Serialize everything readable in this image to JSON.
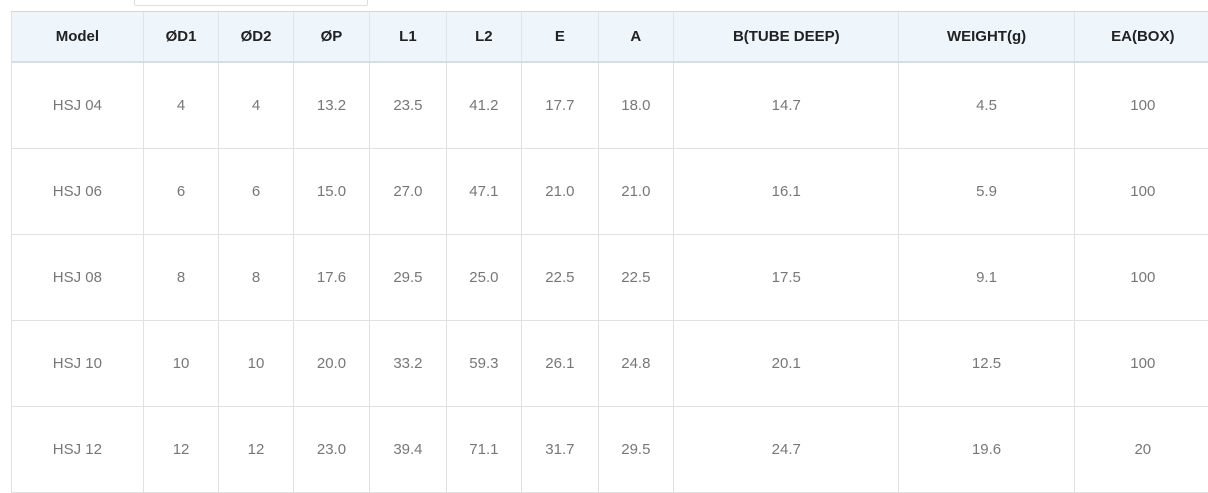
{
  "table": {
    "header": [
      "Model",
      "ØD1",
      "ØD2",
      "ØP",
      "L1",
      "L2",
      "E",
      "A",
      "B(TUBE DEEP)",
      "WEIGHT(g)",
      "EA(BOX)"
    ],
    "rows": [
      [
        "HSJ 04",
        "4",
        "4",
        "13.2",
        "23.5",
        "41.2",
        "17.7",
        "18.0",
        "14.7",
        "4.5",
        "100"
      ],
      [
        "HSJ 06",
        "6",
        "6",
        "15.0",
        "27.0",
        "47.1",
        "21.0",
        "21.0",
        "16.1",
        "5.9",
        "100"
      ],
      [
        "HSJ 08",
        "8",
        "8",
        "17.6",
        "29.5",
        "25.0",
        "22.5",
        "22.5",
        "17.5",
        "9.1",
        "100"
      ],
      [
        "HSJ 10",
        "10",
        "10",
        "20.0",
        "33.2",
        "59.3",
        "26.1",
        "24.8",
        "20.1",
        "12.5",
        "100"
      ],
      [
        "HSJ 12",
        "12",
        "12",
        "23.0",
        "39.4",
        "71.1",
        "31.7",
        "29.5",
        "24.7",
        "19.6",
        "20"
      ]
    ]
  }
}
